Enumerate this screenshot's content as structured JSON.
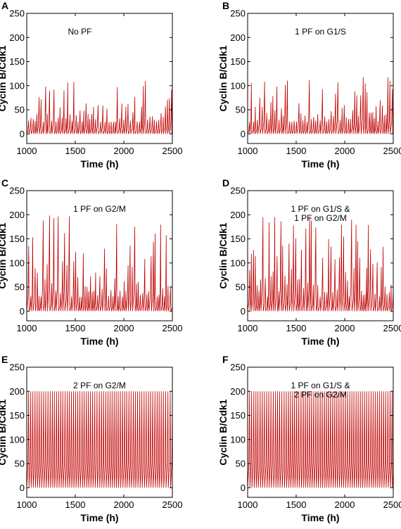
{
  "chart_data": [
    {
      "panel": "A",
      "type": "line",
      "xlabel": "Time (h)",
      "ylabel": "Cyclin B/Cdk1",
      "xlim": [
        1000,
        2500
      ],
      "ylim": [
        -20,
        250
      ],
      "xticks": [
        "1000",
        "1500",
        "2000",
        "2500"
      ],
      "yticks": [
        "0",
        "50",
        "100",
        "150",
        "200",
        "250"
      ],
      "annotation": [
        "No PF"
      ],
      "series": [
        {
          "color": "#c00000",
          "period_h": 21,
          "min": 0,
          "peak_range": [
            25,
            110
          ],
          "mean_peak": 52
        }
      ]
    },
    {
      "panel": "B",
      "type": "line",
      "xlabel": "Time (h)",
      "ylabel": "Cyclin B/Cdk1",
      "xlim": [
        1000,
        2500
      ],
      "ylim": [
        -20,
        250
      ],
      "xticks": [
        "1000",
        "1500",
        "2000",
        "2500"
      ],
      "yticks": [
        "0",
        "50",
        "100",
        "150",
        "200",
        "250"
      ],
      "annotation": [
        "1 PF on G1/S"
      ],
      "series": [
        {
          "color": "#c00000",
          "period_h": 21,
          "min": 0,
          "peak_range": [
            25,
            118
          ],
          "mean_peak": 55
        }
      ]
    },
    {
      "panel": "C",
      "type": "line",
      "xlabel": "Time (h)",
      "ylabel": "Cyclin B/Cdk1",
      "xlim": [
        1000,
        2500
      ],
      "ylim": [
        -20,
        250
      ],
      "xticks": [
        "1000",
        "1500",
        "2000",
        "2500"
      ],
      "yticks": [
        "0",
        "50",
        "100",
        "150",
        "200",
        "250"
      ],
      "annotation": [
        "1 PF on G2/M"
      ],
      "series": [
        {
          "color": "#c00000",
          "period_h": 21,
          "min": 0,
          "peak_range": [
            30,
            200
          ],
          "mean_peak": 75
        }
      ]
    },
    {
      "panel": "D",
      "type": "line",
      "xlabel": "Time (h)",
      "ylabel": "Cyclin B/Cdk1",
      "xlim": [
        1000,
        2500
      ],
      "ylim": [
        -20,
        250
      ],
      "xticks": [
        "1000",
        "1500",
        "2000",
        "2500"
      ],
      "yticks": [
        "0",
        "50",
        "100",
        "150",
        "200",
        "250"
      ],
      "annotation": [
        "1 PF on G1/S &",
        "1 PF on G2/M"
      ],
      "series": [
        {
          "color": "#c00000",
          "period_h": 21,
          "min": 0,
          "peak_range": [
            30,
            200
          ],
          "mean_peak": 68
        }
      ]
    },
    {
      "panel": "E",
      "type": "line",
      "xlabel": "Time (h)",
      "ylabel": "Cyclin B/Cdk1",
      "xlim": [
        1000,
        2500
      ],
      "ylim": [
        -20,
        250
      ],
      "xticks": [
        "1000",
        "1500",
        "2000",
        "2500"
      ],
      "yticks": [
        "0",
        "50",
        "100",
        "150",
        "200",
        "250"
      ],
      "annotation": [
        "2 PF on G2/M"
      ],
      "series": [
        {
          "color": "#c00000",
          "period_h": 22,
          "min": 0,
          "peak_range": [
            200,
            200
          ],
          "mean_peak": 200
        }
      ]
    },
    {
      "panel": "F",
      "type": "line",
      "xlabel": "Time (h)",
      "ylabel": "Cyclin B/Cdk1",
      "xlim": [
        1000,
        2500
      ],
      "ylim": [
        -20,
        250
      ],
      "xticks": [
        "1000",
        "1500",
        "2000",
        "2500"
      ],
      "yticks": [
        "0",
        "50",
        "100",
        "150",
        "200",
        "250"
      ],
      "annotation": [
        "1 PF on G1/S &",
        "2 PF on G2/M"
      ],
      "series": [
        {
          "color": "#c00000",
          "period_h": 22,
          "min": 0,
          "peak_range": [
            200,
            200
          ],
          "mean_peak": 200
        }
      ]
    }
  ]
}
